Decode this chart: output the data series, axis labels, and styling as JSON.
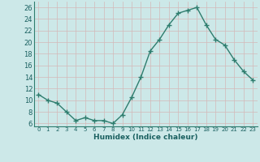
{
  "x": [
    0,
    1,
    2,
    3,
    4,
    5,
    6,
    7,
    8,
    9,
    10,
    11,
    12,
    13,
    14,
    15,
    16,
    17,
    18,
    19,
    20,
    21,
    22,
    23
  ],
  "y": [
    11,
    10,
    9.5,
    8,
    6.5,
    7,
    6.5,
    6.5,
    6,
    7.5,
    10.5,
    14,
    18.5,
    20.5,
    23,
    25,
    25.5,
    26,
    23,
    20.5,
    19.5,
    17,
    15,
    13.5
  ],
  "line_color": "#2e7d6e",
  "marker_color": "#2e7d6e",
  "bg_color": "#cce8e8",
  "grid_color": "#b8d8d8",
  "xlabel": "Humidex (Indice chaleur)",
  "xlim": [
    -0.5,
    23.5
  ],
  "ylim": [
    5.5,
    27
  ],
  "yticks": [
    6,
    8,
    10,
    12,
    14,
    16,
    18,
    20,
    22,
    24,
    26
  ],
  "xtick_labels": [
    "0",
    "1",
    "2",
    "3",
    "4",
    "5",
    "6",
    "7",
    "8",
    "9",
    "1011",
    "1213",
    "1415",
    "1617",
    "1819",
    "2021",
    "2223"
  ]
}
